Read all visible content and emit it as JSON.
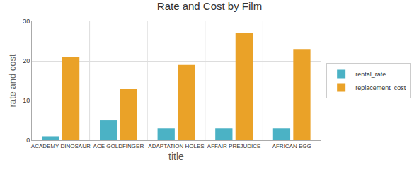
{
  "chart_data": {
    "type": "bar",
    "title": "Rate and Cost by Film",
    "x_label": "title",
    "y_label": "rate and cost",
    "categories": [
      "ACADEMY DINOSAUR",
      "ACE GOLDFINGER",
      "ADAPTATION HOLES",
      "AFFAIR PREJUDICE",
      "AFRICAN EGG"
    ],
    "series": [
      {
        "name": "rental_rate",
        "color": "#4bb2c5",
        "values": [
          0.99,
          4.99,
          2.99,
          2.99,
          2.99
        ]
      },
      {
        "name": "replacement_cost",
        "color": "#eaa228",
        "values": [
          20.99,
          12.99,
          18.99,
          26.99,
          22.99
        ]
      }
    ],
    "ylim": [
      0,
      30
    ],
    "yticks": [
      0,
      10,
      20,
      30
    ],
    "grid": true,
    "legend": "right"
  }
}
